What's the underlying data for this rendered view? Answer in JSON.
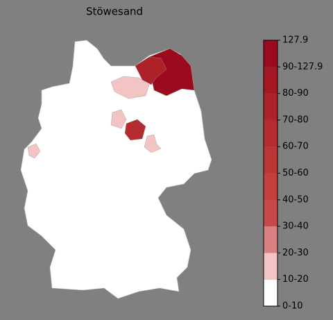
{
  "title": "Stöwesand",
  "legend": {
    "labels": [
      "0-10",
      "10-20",
      "20-30",
      "30-40",
      "40-50",
      "50-60",
      "60-70",
      "70-80",
      "80-90",
      "90-127.9",
      "127.9"
    ],
    "colors": [
      "#ffffff",
      "#f2c4c4",
      "#db8080",
      "#c94848",
      "#c4403f",
      "#bd3636",
      "#b52c30",
      "#ad2229",
      "#a51823",
      "#9c0a1e"
    ]
  }
}
